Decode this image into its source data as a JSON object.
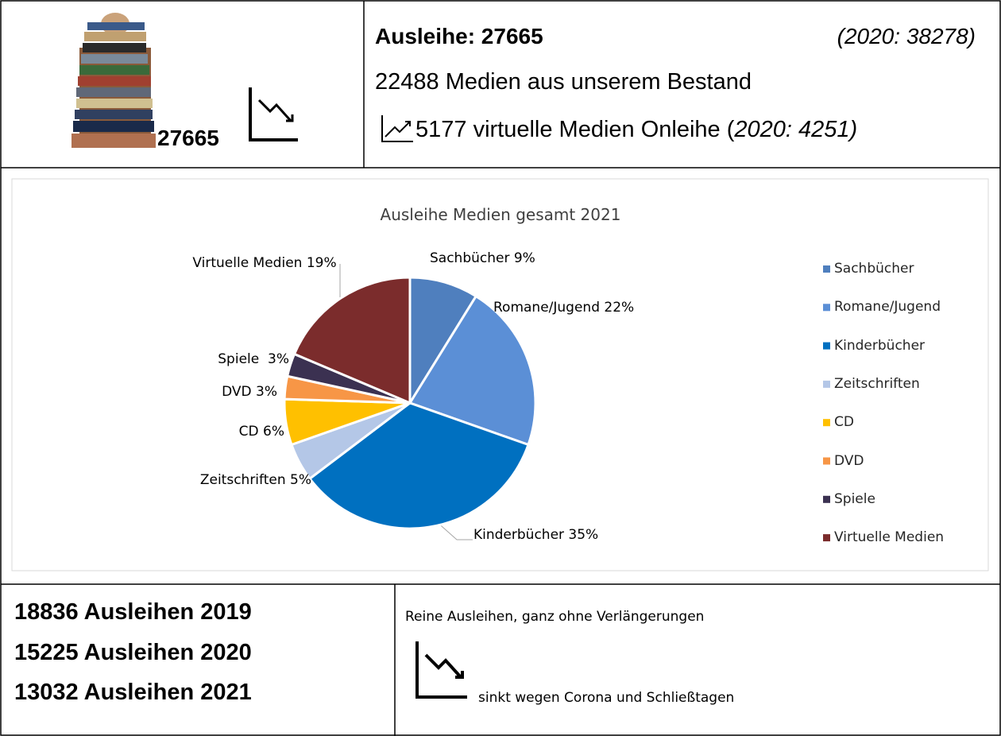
{
  "header": {
    "count": "27665",
    "title": "Ausleihe: 27665",
    "comparison": "(2020: 38278)",
    "line1": "22488 Medien aus unserem Bestand",
    "line2": "5177 virtuelle Medien Onleihe (",
    "line2_italic": "2020: 4251)"
  },
  "chart_data": {
    "type": "pie",
    "title": "Ausleihe Medien gesamt 2021",
    "categories": [
      "Sachbücher",
      "Romane/Jugend",
      "Kinderbücher",
      "Zeitschriften",
      "CD",
      "DVD",
      "Spiele",
      "Virtuelle Medien"
    ],
    "values": [
      9,
      22,
      35,
      5,
      6,
      3,
      3,
      19
    ],
    "value_labels": [
      "Sachbücher 9%",
      "Romane/Jugend 22%",
      "Kinderbücher 35%",
      "Zeitschriften 5%",
      "CD 6%",
      "DVD 3%",
      "Spiele  3%",
      "Virtuelle Medien 19%"
    ],
    "colors": [
      "#4f7fbe",
      "#5b8fd6",
      "#0070c0",
      "#b4c7e7",
      "#ffc000",
      "#f79646",
      "#3b3151",
      "#7b2c2c"
    ],
    "legend": "right"
  },
  "footer": {
    "lines": [
      "18836 Ausleihen 2019",
      "15225 Ausleihen 2020",
      "13032 Ausleihen 2021"
    ],
    "note": "Reine Ausleihen, ganz ohne Verlängerungen",
    "trend": "sinkt wegen Corona und Schließtagen"
  }
}
